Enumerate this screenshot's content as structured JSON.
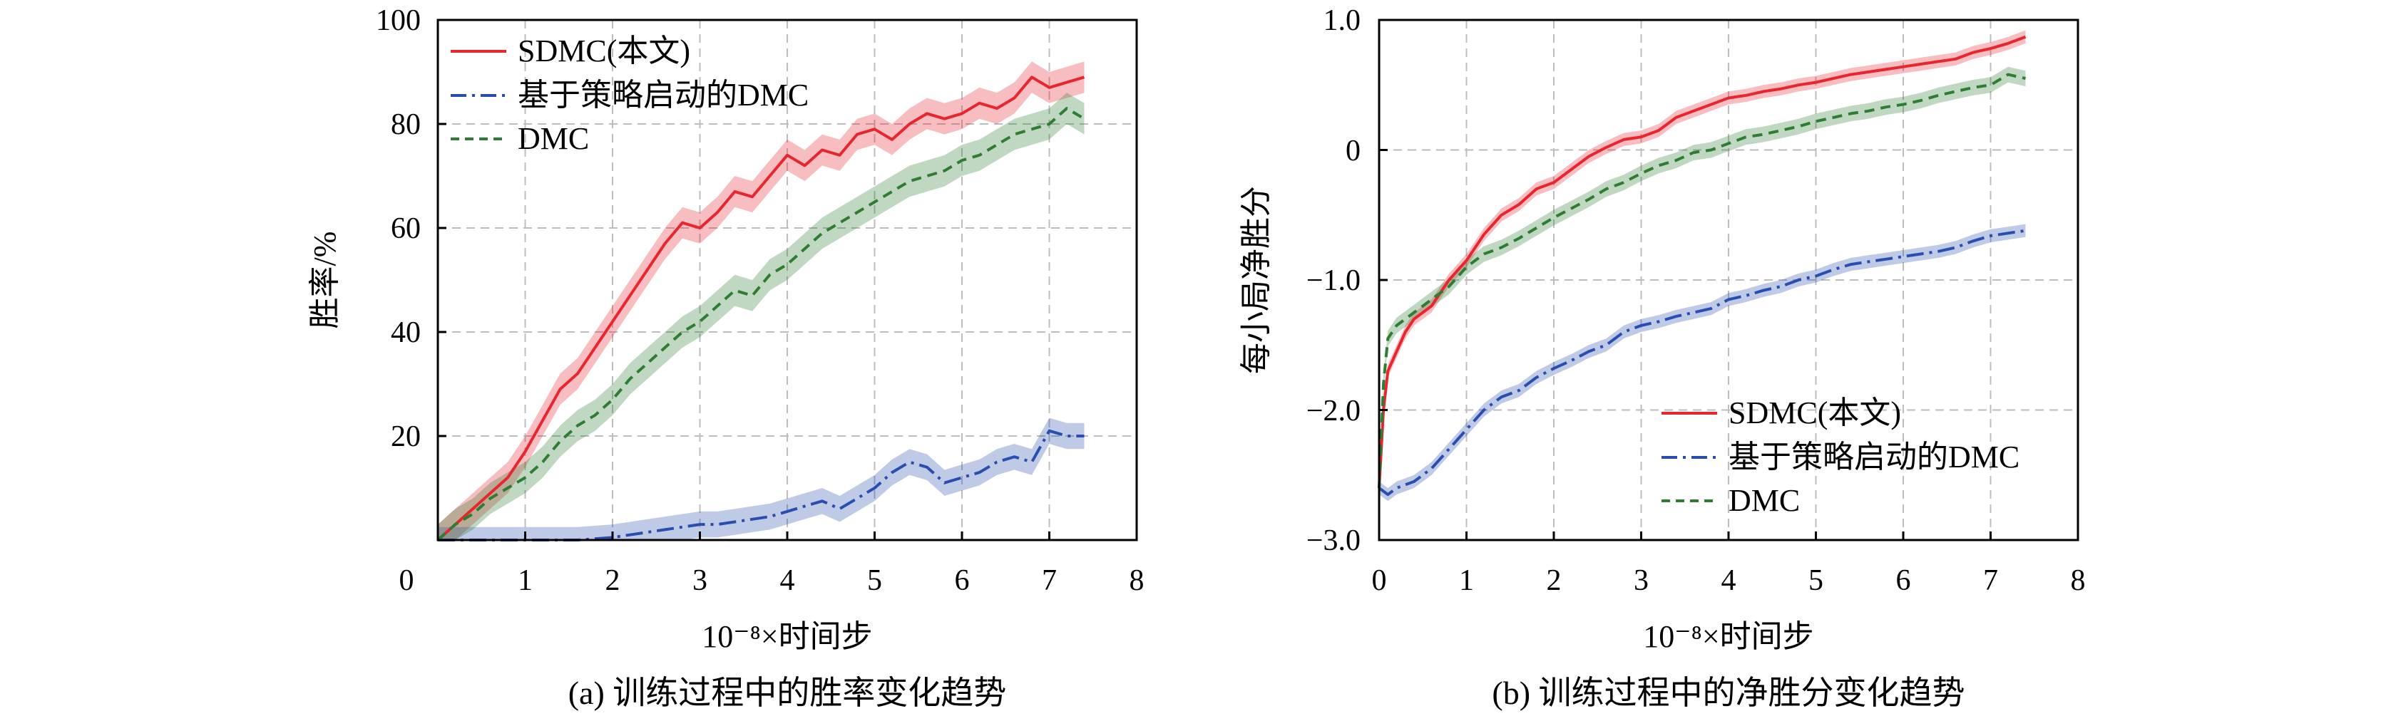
{
  "chart_data": [
    {
      "type": "line",
      "caption": "(a)  训练过程中的胜率变化趋势",
      "xlabel": "10⁻⁸×时间步",
      "ylabel": "胜率/%",
      "xlim": [
        0,
        8
      ],
      "ylim": [
        0,
        100
      ],
      "xticks": [
        "0",
        "1",
        "2",
        "3",
        "4",
        "5",
        "6",
        "7",
        "8"
      ],
      "yticks": [
        "20",
        "40",
        "60",
        "80",
        "100"
      ],
      "xtick_values": [
        0,
        1,
        2,
        3,
        4,
        5,
        6,
        7,
        8
      ],
      "ytick_values": [
        20,
        40,
        60,
        80,
        100
      ],
      "grid": true,
      "legend_position": "top-left",
      "series": [
        {
          "name": "SDMC(本文)",
          "color": "#e8262d",
          "dash": "solid",
          "band": 3,
          "x": [
            0,
            0.2,
            0.4,
            0.6,
            0.8,
            1.0,
            1.2,
            1.4,
            1.6,
            1.8,
            2.0,
            2.2,
            2.4,
            2.6,
            2.8,
            3.0,
            3.2,
            3.4,
            3.6,
            3.8,
            4.0,
            4.2,
            4.4,
            4.6,
            4.8,
            5.0,
            5.2,
            5.4,
            5.6,
            5.8,
            6.0,
            6.2,
            6.4,
            6.6,
            6.8,
            7.0,
            7.2,
            7.4
          ],
          "y": [
            0,
            3,
            6,
            9,
            12,
            17,
            23,
            29,
            32,
            37,
            42,
            47,
            52,
            57,
            61,
            60,
            63,
            67,
            66,
            70,
            74,
            72,
            75,
            74,
            78,
            79,
            77,
            80,
            82,
            81,
            82,
            84,
            83,
            85,
            89,
            87,
            88,
            89
          ]
        },
        {
          "name": "基于策略启动的DMC",
          "color": "#2a4eb0",
          "dash": "dashdot",
          "band": 2.5,
          "x": [
            0,
            0.4,
            0.8,
            1.2,
            1.6,
            2.0,
            2.2,
            2.4,
            2.6,
            2.8,
            3.0,
            3.2,
            3.4,
            3.6,
            3.8,
            4.0,
            4.2,
            4.4,
            4.6,
            4.8,
            5.0,
            5.2,
            5.4,
            5.6,
            5.8,
            6.0,
            6.2,
            6.4,
            6.6,
            6.8,
            7.0,
            7.2,
            7.4
          ],
          "y": [
            0,
            0,
            0,
            0,
            0,
            0.5,
            1,
            1.5,
            2,
            2.5,
            3,
            3,
            3.5,
            4,
            4.5,
            5.5,
            6.5,
            7.5,
            6,
            8,
            10,
            13,
            15,
            14,
            11,
            12,
            13,
            15,
            16,
            15,
            21,
            20,
            20
          ]
        },
        {
          "name": "DMC",
          "color": "#2e7d32",
          "dash": "dashed",
          "band": 3,
          "x": [
            0,
            0.2,
            0.4,
            0.6,
            0.8,
            1.0,
            1.2,
            1.4,
            1.6,
            1.8,
            2.0,
            2.2,
            2.4,
            2.6,
            2.8,
            3.0,
            3.2,
            3.4,
            3.6,
            3.8,
            4.0,
            4.2,
            4.4,
            4.6,
            4.8,
            5.0,
            5.2,
            5.4,
            5.6,
            5.8,
            6.0,
            6.2,
            6.4,
            6.6,
            6.8,
            7.0,
            7.2,
            7.4
          ],
          "y": [
            0,
            3,
            5,
            8,
            10,
            12,
            15,
            19,
            22,
            24,
            27,
            31,
            34,
            37,
            40,
            42,
            45,
            48,
            47,
            51,
            53,
            56,
            59,
            61,
            63,
            65,
            67,
            69,
            70,
            71,
            73,
            74,
            76,
            78,
            79,
            80,
            83,
            81
          ]
        }
      ]
    },
    {
      "type": "line",
      "caption": "(b)  训练过程中的净胜分变化趋势",
      "xlabel": "10⁻⁸×时间步",
      "ylabel": "每小局净胜分",
      "xlim": [
        0,
        8
      ],
      "ylim": [
        -3.0,
        1.0
      ],
      "xticks": [
        "0",
        "1",
        "2",
        "3",
        "4",
        "5",
        "6",
        "7",
        "8"
      ],
      "yticks": [
        "−3.0",
        "−2.0",
        "−1.0",
        "0",
        "1.0"
      ],
      "xtick_values": [
        0,
        1,
        2,
        3,
        4,
        5,
        6,
        7,
        8
      ],
      "ytick_values": [
        -3.0,
        -2.0,
        -1.0,
        0,
        1.0
      ],
      "grid": true,
      "legend_position": "bottom-right",
      "series": [
        {
          "name": "SDMC(本文)",
          "color": "#e8262d",
          "dash": "solid",
          "band": 0.05,
          "x": [
            0,
            0.05,
            0.1,
            0.2,
            0.3,
            0.4,
            0.5,
            0.6,
            0.8,
            1.0,
            1.2,
            1.4,
            1.6,
            1.8,
            2.0,
            2.2,
            2.4,
            2.6,
            2.8,
            3.0,
            3.2,
            3.4,
            3.6,
            3.8,
            4.0,
            4.2,
            4.4,
            4.6,
            4.8,
            5.0,
            5.2,
            5.4,
            5.6,
            5.8,
            6.0,
            6.2,
            6.4,
            6.6,
            6.8,
            7.0,
            7.2,
            7.4
          ],
          "y": [
            -2.6,
            -2.0,
            -1.7,
            -1.55,
            -1.4,
            -1.3,
            -1.25,
            -1.2,
            -1.0,
            -0.85,
            -0.65,
            -0.5,
            -0.42,
            -0.3,
            -0.25,
            -0.15,
            -0.05,
            0.02,
            0.08,
            0.1,
            0.15,
            0.25,
            0.3,
            0.35,
            0.4,
            0.42,
            0.45,
            0.47,
            0.5,
            0.52,
            0.55,
            0.58,
            0.6,
            0.62,
            0.64,
            0.66,
            0.68,
            0.7,
            0.75,
            0.78,
            0.82,
            0.87
          ]
        },
        {
          "name": "基于策略启动的DMC",
          "color": "#2a4eb0",
          "dash": "dashdot",
          "band": 0.05,
          "x": [
            0,
            0.1,
            0.2,
            0.4,
            0.6,
            0.8,
            1.0,
            1.2,
            1.4,
            1.6,
            1.8,
            2.0,
            2.2,
            2.4,
            2.6,
            2.8,
            3.0,
            3.2,
            3.4,
            3.6,
            3.8,
            4.0,
            4.2,
            4.4,
            4.6,
            4.8,
            5.0,
            5.2,
            5.4,
            5.6,
            5.8,
            6.0,
            6.2,
            6.4,
            6.6,
            6.8,
            7.0,
            7.2,
            7.4
          ],
          "y": [
            -2.6,
            -2.65,
            -2.6,
            -2.55,
            -2.45,
            -2.3,
            -2.15,
            -2.0,
            -1.9,
            -1.85,
            -1.75,
            -1.68,
            -1.62,
            -1.55,
            -1.5,
            -1.4,
            -1.35,
            -1.32,
            -1.28,
            -1.25,
            -1.22,
            -1.15,
            -1.12,
            -1.08,
            -1.05,
            -1.0,
            -0.97,
            -0.92,
            -0.88,
            -0.86,
            -0.84,
            -0.82,
            -0.8,
            -0.78,
            -0.75,
            -0.7,
            -0.66,
            -0.64,
            -0.62
          ]
        },
        {
          "name": "DMC",
          "color": "#2e7d32",
          "dash": "dashed",
          "band": 0.06,
          "x": [
            0,
            0.05,
            0.1,
            0.2,
            0.3,
            0.4,
            0.5,
            0.6,
            0.8,
            1.0,
            1.2,
            1.4,
            1.6,
            1.8,
            2.0,
            2.2,
            2.4,
            2.6,
            2.8,
            3.0,
            3.2,
            3.4,
            3.6,
            3.8,
            4.0,
            4.2,
            4.4,
            4.6,
            4.8,
            5.0,
            5.2,
            5.4,
            5.6,
            5.8,
            6.0,
            6.2,
            6.4,
            6.6,
            6.8,
            7.0,
            7.2,
            7.4
          ],
          "y": [
            -2.6,
            -1.8,
            -1.45,
            -1.35,
            -1.3,
            -1.25,
            -1.2,
            -1.15,
            -1.05,
            -0.9,
            -0.8,
            -0.75,
            -0.68,
            -0.6,
            -0.52,
            -0.45,
            -0.38,
            -0.3,
            -0.25,
            -0.18,
            -0.12,
            -0.08,
            -0.02,
            0.0,
            0.05,
            0.1,
            0.12,
            0.15,
            0.18,
            0.22,
            0.25,
            0.28,
            0.3,
            0.33,
            0.35,
            0.38,
            0.42,
            0.45,
            0.48,
            0.5,
            0.58,
            0.55
          ]
        }
      ]
    }
  ]
}
